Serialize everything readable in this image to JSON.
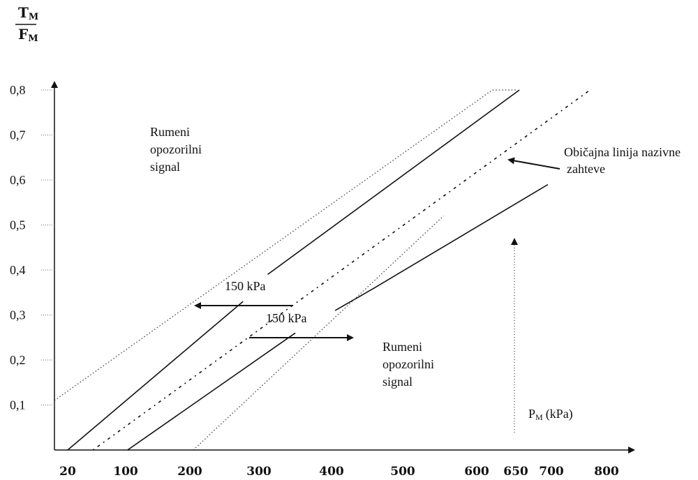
{
  "chart_data": {
    "type": "line",
    "title": "",
    "ylabel_numerator": "T",
    "ylabel_denominator": "F",
    "ylabel_subscript": "M",
    "xlabel": "P",
    "xlabel_subscript": "M",
    "xlabel_unit": "(kPa)",
    "x_ticks": [
      "20",
      "100",
      "200",
      "300",
      "400",
      "500",
      "600",
      "650",
      "700",
      "800"
    ],
    "y_ticks": [
      "0,1",
      "0,2",
      "0,3",
      "0,4",
      "0,5",
      "0,6",
      "0,7",
      "0,8"
    ],
    "ylim": [
      0,
      0.85
    ],
    "grid": false,
    "annotations": {
      "upper_region": [
        "Rumeni",
        "opozorilni",
        "signal"
      ],
      "lower_region": [
        "Rumeni",
        "opozorilni",
        "signal"
      ],
      "nominal_line": [
        "Običajna linija nazivne",
        "zahteve"
      ],
      "offset_upper": "150 kPa",
      "offset_lower": "150 kPa"
    },
    "series": [
      {
        "style": "dotted",
        "points": [
          [
            0,
            0.11
          ],
          [
            620,
            0.8
          ],
          [
            650,
            0.8
          ]
        ]
      },
      {
        "style": "solid",
        "points": [
          [
            20,
            0
          ],
          [
            277,
            0.33
          ]
        ]
      },
      {
        "style": "solid",
        "points": [
          [
            312,
            0.39
          ],
          [
            655,
            0.8
          ]
        ]
      },
      {
        "style": "dashdot",
        "points": [
          [
            55,
            0
          ],
          [
            770,
            0.8
          ]
        ]
      },
      {
        "style": "solid",
        "points": [
          [
            103,
            0
          ],
          [
            350,
            0.26
          ]
        ]
      },
      {
        "style": "solid",
        "points": [
          [
            405,
            0.31
          ],
          [
            460,
            0.36
          ],
          [
            695,
            0.59
          ]
        ]
      },
      {
        "style": "dotted",
        "points": [
          [
            205,
            0
          ],
          [
            555,
            0.52
          ]
        ]
      }
    ]
  }
}
